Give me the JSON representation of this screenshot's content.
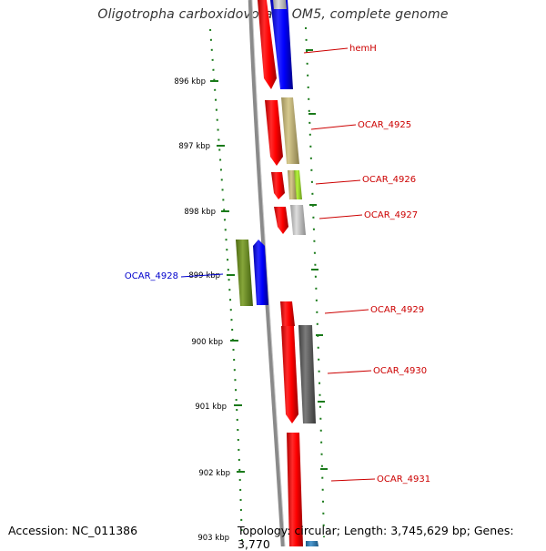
{
  "title": "Oligotropha carboxidovorans OM5, complete genome",
  "footer": {
    "accession": "Accession: NC_011386",
    "summary": "Topology: circular; Length: 3,745,629 bp; Genes: 3,770"
  },
  "colors": {
    "ruler": "#1a7a1a",
    "backbone": "#8a8a8a",
    "cds_fwd_label": "#cc0000",
    "cds_rev_label": "#0000cc",
    "cds": "#ff0000"
  },
  "ruler_ticks": [
    "896 kbp",
    "897 kbp",
    "898 kbp",
    "899 kbp",
    "900 kbp",
    "901 kbp",
    "902 kbp",
    "903 kbp"
  ],
  "gene_labels": [
    {
      "text": "hemH",
      "color": "#cc0000"
    },
    {
      "text": "OCAR_4925",
      "color": "#cc0000"
    },
    {
      "text": "OCAR_4926",
      "color": "#cc0000"
    },
    {
      "text": "OCAR_4927",
      "color": "#cc0000"
    },
    {
      "text": "OCAR_4928",
      "color": "#0000cc"
    },
    {
      "text": "OCAR_4929",
      "color": "#cc0000"
    },
    {
      "text": "OCAR_4930",
      "color": "#cc0000"
    },
    {
      "text": "OCAR_4931",
      "color": "#cc0000"
    }
  ]
}
